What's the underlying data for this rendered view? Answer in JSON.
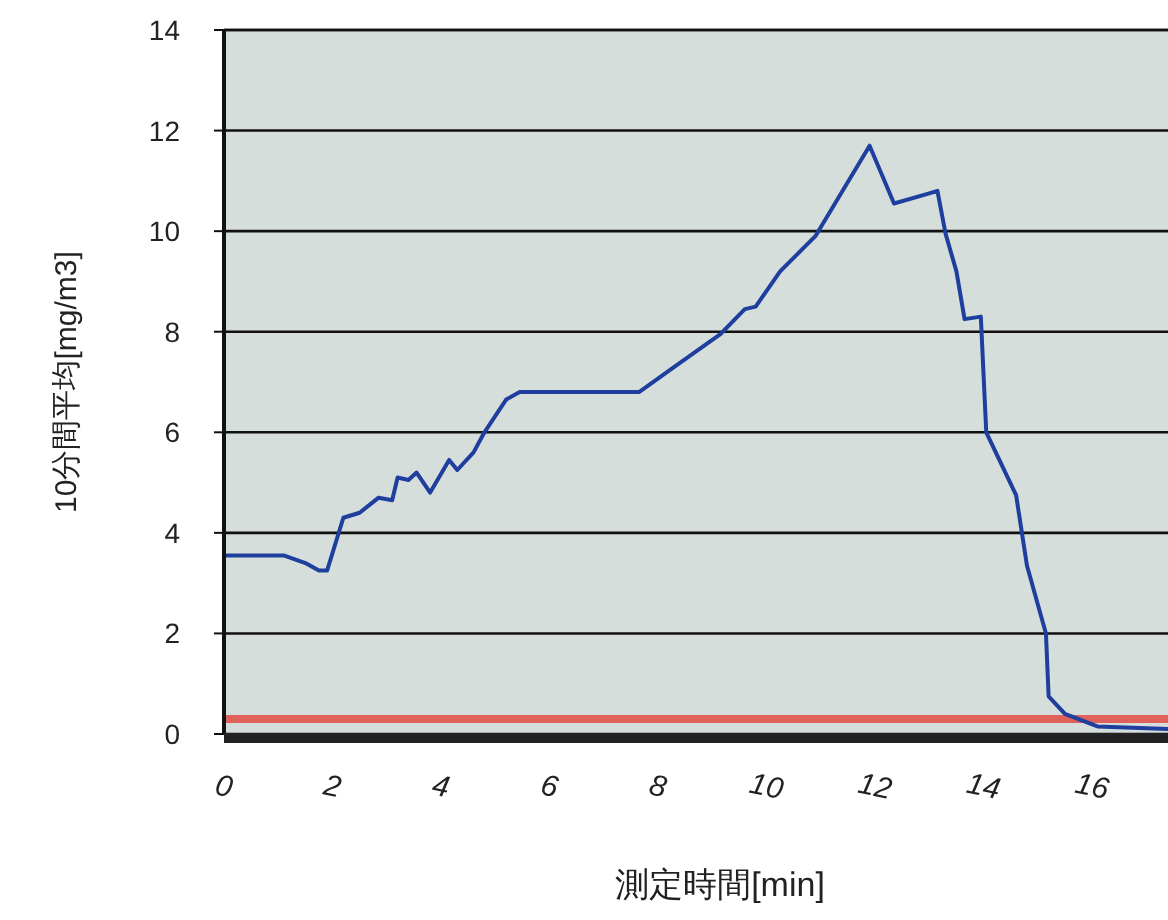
{
  "chart_data": {
    "type": "line",
    "xlabel": "測定時間[min]",
    "ylabel": "10分間平均[mg/m3]",
    "xlim": [
      0,
      17.4
    ],
    "ylim": [
      0,
      14
    ],
    "xticks": [
      0,
      2,
      4,
      6,
      8,
      10,
      12,
      14,
      16
    ],
    "yticks": [
      0,
      2,
      4,
      6,
      8,
      10,
      12,
      14
    ],
    "grid": "y",
    "ref_lines": [
      {
        "axis": "y",
        "value": 0.3,
        "color": "#e0605a"
      }
    ],
    "series": [
      {
        "color": "#1f3f9f",
        "x": [
          0,
          1.1,
          1.5,
          1.75,
          1.9,
          2.2,
          2.5,
          2.85,
          3.1,
          3.2,
          3.4,
          3.55,
          3.8,
          4.15,
          4.3,
          4.6,
          4.8,
          5.2,
          5.45,
          7.65,
          8.3,
          9.15,
          9.6,
          9.8,
          10.25,
          10.9,
          11.9,
          12.35,
          13.0,
          13.15,
          13.3,
          13.5,
          13.65,
          13.95,
          14.05,
          14.6,
          14.8,
          15.15,
          15.2,
          15.5,
          16.1,
          17.4
        ],
        "values": [
          3.55,
          3.55,
          3.4,
          3.25,
          3.25,
          4.3,
          4.4,
          4.7,
          4.65,
          5.1,
          5.05,
          5.2,
          4.8,
          5.45,
          5.25,
          5.6,
          6.0,
          6.65,
          6.8,
          6.8,
          7.3,
          7.95,
          8.45,
          8.5,
          9.2,
          9.9,
          11.7,
          10.55,
          10.75,
          10.8,
          9.95,
          9.2,
          8.25,
          8.3,
          6.0,
          4.75,
          3.35,
          2.0,
          0.75,
          0.4,
          0.15,
          0.1
        ]
      }
    ]
  }
}
